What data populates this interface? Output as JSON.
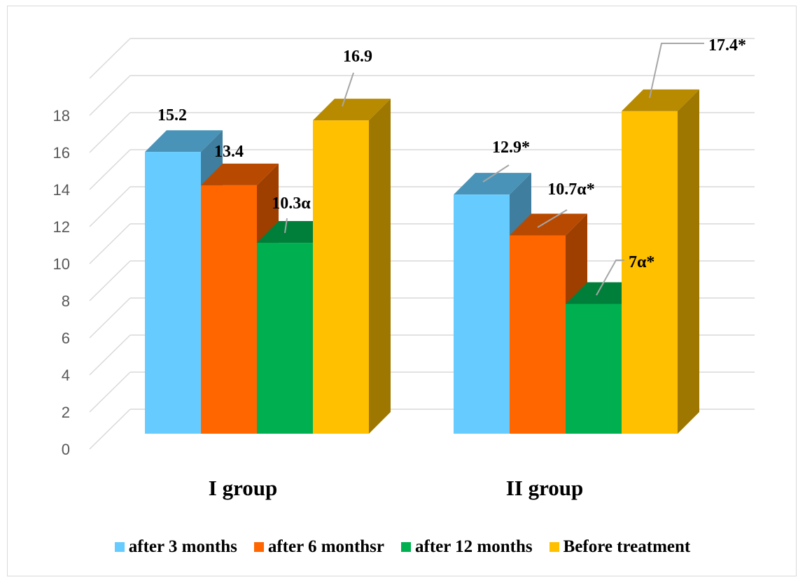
{
  "chart_data": {
    "type": "bar",
    "title": "",
    "xlabel": "",
    "ylabel": "",
    "ylim": [
      0,
      18
    ],
    "yticks": [
      0,
      2,
      4,
      6,
      8,
      10,
      12,
      14,
      16,
      18
    ],
    "categories": [
      "I group",
      "II group"
    ],
    "grid": true,
    "legend_position": "bottom",
    "series": [
      {
        "name": "after 3 months",
        "color": "#66ccff",
        "values": [
          15.2,
          12.9
        ],
        "labels": [
          "15.2",
          "12.9*"
        ]
      },
      {
        "name": "after 6 monthsr",
        "color": "#ff6600",
        "values": [
          13.4,
          10.7
        ],
        "labels": [
          "13.4",
          "10.7α*"
        ]
      },
      {
        "name": "after 12 months",
        "color": "#00b050",
        "values": [
          10.3,
          7
        ],
        "labels": [
          "10.3α",
          "7α*"
        ]
      },
      {
        "name": "Before treatment",
        "color": "#ffc000",
        "values": [
          16.9,
          17.4
        ],
        "labels": [
          "16.9",
          "17.4*"
        ]
      }
    ]
  }
}
